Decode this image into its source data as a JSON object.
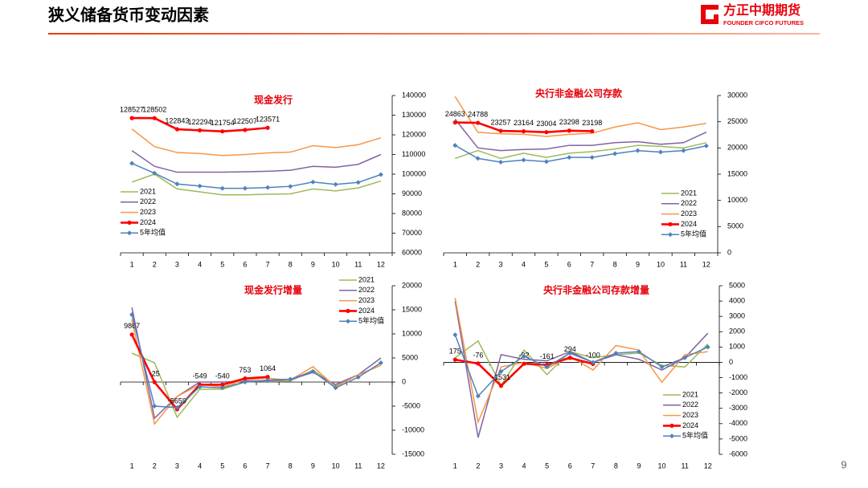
{
  "header": {
    "title": "狭义储备货币变动因素",
    "logo_name": "方正中期期货",
    "logo_subtitle": "FOUNDER CIFCO FUTURES"
  },
  "page_number": 9,
  "chart_data": [
    {
      "type": "line",
      "title": "现金发行",
      "categories": [
        "1",
        "2",
        "3",
        "4",
        "5",
        "6",
        "7",
        "8",
        "9",
        "10",
        "11",
        "12"
      ],
      "ylim": [
        60000,
        140000
      ],
      "yticks": [
        60000,
        70000,
        80000,
        90000,
        100000,
        110000,
        120000,
        130000,
        140000
      ],
      "y_axis_side": "right",
      "legend": "lower left",
      "series": [
        {
          "name": "2021",
          "color": "#9bbb59",
          "values": [
            96000,
            100000,
            92500,
            91000,
            89500,
            89500,
            89800,
            90000,
            92500,
            91500,
            93000,
            96500
          ]
        },
        {
          "name": "2022",
          "color": "#8064a2",
          "values": [
            112000,
            104000,
            101000,
            101000,
            101000,
            101200,
            101500,
            102000,
            104000,
            103500,
            105000,
            110000
          ]
        },
        {
          "name": "2023",
          "color": "#f79646",
          "values": [
            123000,
            114000,
            111000,
            110500,
            109500,
            110000,
            110800,
            111200,
            114500,
            113500,
            115000,
            118500
          ]
        },
        {
          "name": "2024",
          "color": "#ff0000",
          "values": [
            128527,
            128502,
            122843,
            122294,
            121754,
            122507,
            123571,
            null,
            null,
            null,
            null,
            null
          ]
        },
        {
          "name": "5年均值",
          "color": "#4f81bd",
          "values": [
            105500,
            100500,
            95000,
            94000,
            92800,
            92800,
            93200,
            93800,
            96000,
            94800,
            95800,
            99800
          ]
        }
      ]
    },
    {
      "type": "line",
      "title": "央行非金融公司存款",
      "categories": [
        "1",
        "2",
        "3",
        "4",
        "5",
        "6",
        "7",
        "8",
        "9",
        "10",
        "11",
        "12"
      ],
      "ylim": [
        0,
        30000
      ],
      "yticks": [
        0,
        5000,
        10000,
        15000,
        20000,
        25000,
        30000
      ],
      "y_axis_side": "right",
      "legend": "lower right",
      "series": [
        {
          "name": "2021",
          "color": "#9bbb59",
          "values": [
            18000,
            19500,
            18000,
            19000,
            18200,
            19000,
            19300,
            19800,
            20500,
            20300,
            20000,
            21000
          ]
        },
        {
          "name": "2022",
          "color": "#8064a2",
          "values": [
            25500,
            20000,
            19500,
            19700,
            19800,
            20500,
            20500,
            21000,
            21200,
            20700,
            21000,
            23000
          ]
        },
        {
          "name": "2023",
          "color": "#f79646",
          "values": [
            29800,
            23000,
            22700,
            22600,
            22200,
            22600,
            22800,
            24000,
            24800,
            23500,
            24000,
            24700
          ]
        },
        {
          "name": "2024",
          "color": "#ff0000",
          "values": [
            24863,
            24788,
            23257,
            23164,
            23004,
            23298,
            23198,
            null,
            null,
            null,
            null,
            null
          ]
        },
        {
          "name": "5年均值",
          "color": "#4f81bd",
          "values": [
            20500,
            18000,
            17300,
            17700,
            17400,
            18200,
            18200,
            18900,
            19500,
            19200,
            19500,
            20400
          ]
        }
      ]
    },
    {
      "type": "line",
      "title": "现金发行增量",
      "categories": [
        "1",
        "2",
        "3",
        "4",
        "5",
        "6",
        "7",
        "8",
        "9",
        "10",
        "11",
        "12"
      ],
      "ylim": [
        -15000,
        20000
      ],
      "yticks": [
        -15000,
        -10000,
        -5000,
        0,
        5000,
        10000,
        15000,
        20000
      ],
      "y_axis_side": "right",
      "legend": "upper right",
      "series": [
        {
          "name": "2021",
          "color": "#9bbb59",
          "values": [
            6000,
            4000,
            -7300,
            -1500,
            -1500,
            0,
            300,
            200,
            2500,
            -800,
            1500,
            3500
          ]
        },
        {
          "name": "2022",
          "color": "#8064a2",
          "values": [
            15500,
            -7500,
            -3000,
            0,
            0,
            200,
            300,
            500,
            2000,
            -500,
            1500,
            5000
          ]
        },
        {
          "name": "2023",
          "color": "#f79646",
          "values": [
            13000,
            -8700,
            -3000,
            -500,
            -1000,
            500,
            800,
            400,
            3200,
            -1000,
            1500,
            3500
          ]
        },
        {
          "name": "2024",
          "color": "#ff0000",
          "values": [
            9867,
            -25,
            -5659,
            -549,
            -540,
            753,
            1064,
            null,
            null,
            null,
            null,
            null
          ]
        },
        {
          "name": "5年均值",
          "color": "#4f81bd",
          "values": [
            14000,
            -5000,
            -5300,
            -1000,
            -1200,
            0,
            400,
            600,
            2200,
            -1200,
            1000,
            4000
          ]
        }
      ]
    },
    {
      "type": "line",
      "title": "央行非金融公司存款增量",
      "categories": [
        "1",
        "2",
        "3",
        "4",
        "5",
        "6",
        "7",
        "8",
        "9",
        "10",
        "11",
        "12"
      ],
      "ylim": [
        -6000,
        5000
      ],
      "yticks": [
        -6000,
        -5000,
        -4000,
        -3000,
        -2000,
        -1000,
        0,
        1000,
        2000,
        3000,
        4000,
        5000
      ],
      "y_axis_side": "right",
      "legend": "lower right",
      "series": [
        {
          "name": "2021",
          "color": "#9bbb59",
          "values": [
            300,
            1400,
            -1500,
            800,
            -800,
            700,
            300,
            500,
            600,
            -200,
            -300,
            1200
          ]
        },
        {
          "name": "2022",
          "color": "#8064a2",
          "values": [
            4000,
            -4900,
            500,
            200,
            100,
            700,
            0,
            500,
            200,
            -500,
            300,
            1900
          ]
        },
        {
          "name": "2023",
          "color": "#f79646",
          "values": [
            4200,
            -3900,
            -300,
            0,
            -400,
            400,
            -500,
            1100,
            800,
            -1300,
            500,
            700
          ]
        },
        {
          "name": "2024",
          "color": "#ff0000",
          "values": [
            175,
            -76,
            -1531,
            -92,
            -161,
            294,
            -100,
            null,
            null,
            null,
            null,
            null
          ]
        },
        {
          "name": "5年均值",
          "color": "#4f81bd",
          "values": [
            1800,
            -2200,
            -600,
            400,
            -300,
            600,
            0,
            600,
            700,
            -300,
            300,
            1000
          ]
        }
      ]
    }
  ]
}
